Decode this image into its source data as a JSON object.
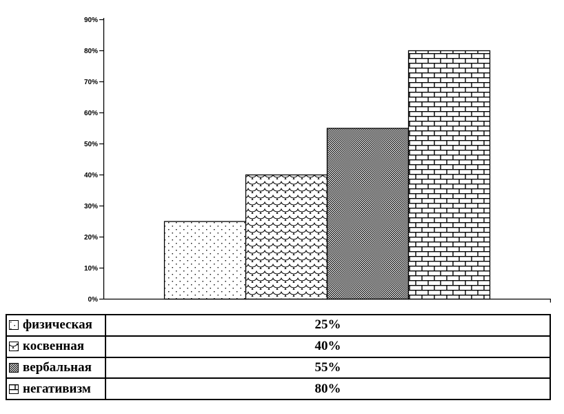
{
  "chart_data": {
    "type": "bar",
    "title": "",
    "xlabel": "",
    "ylabel": "",
    "categories": [
      "физическая",
      "косвенная",
      "вербальная",
      "негативизм"
    ],
    "values": [
      25,
      40,
      55,
      80
    ],
    "ylim": [
      0,
      90
    ],
    "ytick_step": 10,
    "ytick_suffix": "%",
    "ytick_labels": [
      "0%",
      "10%",
      "20%",
      "30%",
      "40%",
      "50%",
      "60%",
      "70%",
      "80%",
      "90%"
    ],
    "patterns": [
      "dots",
      "scales",
      "dense-check",
      "brick"
    ],
    "grid": false,
    "legend_position": "bottom-table",
    "bar_fill": "pattern-black-on-white"
  },
  "legend_table": {
    "rows": [
      {
        "label": "физическая",
        "value": "25%",
        "pattern": "dots"
      },
      {
        "label": "косвенная",
        "value": "40%",
        "pattern": "scales"
      },
      {
        "label": "вербальная",
        "value": "55%",
        "pattern": "dense-check"
      },
      {
        "label": "негативизм",
        "value": "80%",
        "pattern": "brick"
      }
    ]
  },
  "colors": {
    "foreground": "#000000",
    "background": "#ffffff"
  }
}
